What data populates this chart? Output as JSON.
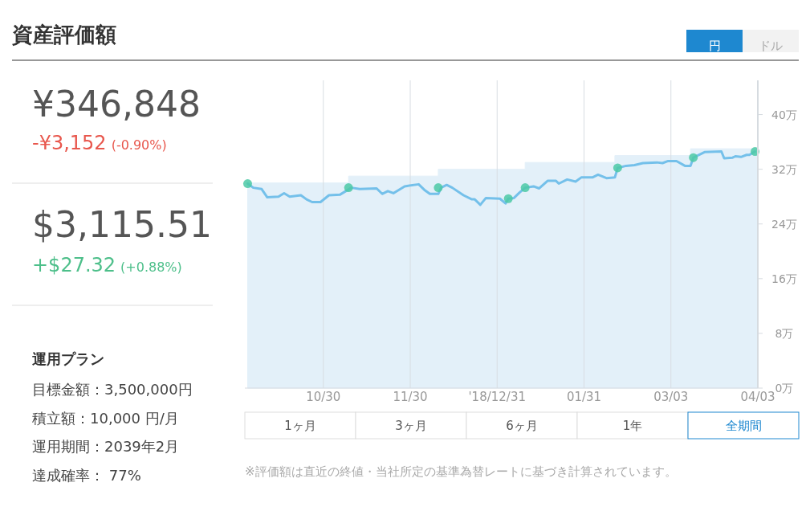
{
  "chart_data": [
    {
      "type": "other",
      "title": "資産評価額",
      "annotations": [
        "¥346,848",
        "-¥3,152",
        "(-0.90%)",
        "$3,115.51",
        "+$27.32",
        "(+0.88%)",
        "運用プラン",
        "目標金額：3,500,000円",
        "積立額：10,000 円/月",
        "運用期間：2039年2月",
        "達成確率： 77%"
      ]
    },
    {
      "type": "line",
      "xlim": [
        "2018-10-02",
        "2019-04-03"
      ],
      "ylim": [
        0,
        45
      ],
      "xticks": [
        {
          "value": "2018-10-30",
          "label": "10/30"
        },
        {
          "value": "2018-11-30",
          "label": "11/30"
        },
        {
          "value": "2018-12-31",
          "label": "'18/12/31"
        },
        {
          "value": "2019-01-31",
          "label": "01/31"
        },
        {
          "value": "2019-03-03",
          "label": "03/03"
        },
        {
          "value": "2019-04-03",
          "label": "04/03"
        }
      ],
      "yticks": [
        {
          "value": 0,
          "label": "0万"
        },
        {
          "value": 8,
          "label": "8万"
        },
        {
          "value": 16,
          "label": "16万"
        },
        {
          "value": 24,
          "label": "24万"
        },
        {
          "value": 32,
          "label": "32万"
        },
        {
          "value": 40,
          "label": "40万"
        }
      ],
      "grid": "x",
      "series": [
        {
          "type": "area",
          "color": "#e3f0f9",
          "x": [
            "2018-10-03",
            "2018-11-08",
            "2018-11-08",
            "2018-12-10",
            "2018-12-10",
            "2019-01-10",
            "2019-01-10",
            "2019-02-11",
            "2019-02-11",
            "2019-03-10",
            "2019-03-10",
            "2019-04-03"
          ],
          "values": [
            30,
            30,
            31,
            31,
            32,
            32,
            33,
            33,
            34,
            34,
            35,
            35
          ]
        },
        {
          "type": "line",
          "color": "#74c0ea",
          "x": [
            "2018-10-03",
            "2018-10-05",
            "2018-10-08",
            "2018-10-10",
            "2018-10-14",
            "2018-10-16",
            "2018-10-18",
            "2018-10-22",
            "2018-10-24",
            "2018-10-26",
            "2018-10-29",
            "2018-11-01",
            "2018-11-05",
            "2018-11-07",
            "2018-11-09",
            "2018-11-12",
            "2018-11-18",
            "2018-11-20",
            "2018-11-22",
            "2018-11-24",
            "2018-11-28",
            "2018-12-03",
            "2018-12-05",
            "2018-12-07",
            "2018-12-10",
            "2018-12-11",
            "2018-12-13",
            "2018-12-15",
            "2018-12-19",
            "2018-12-22",
            "2018-12-23",
            "2018-12-25",
            "2018-12-27",
            "2019-01-01",
            "2019-01-03",
            "2019-01-04",
            "2019-01-06",
            "2019-01-08",
            "2019-01-10",
            "2019-01-13",
            "2019-01-15",
            "2019-01-18",
            "2019-01-21",
            "2019-01-22",
            "2019-01-25",
            "2019-01-28",
            "2019-01-30",
            "2019-02-03",
            "2019-02-05",
            "2019-02-08",
            "2019-02-11",
            "2019-02-12",
            "2019-02-15",
            "2019-02-18",
            "2019-02-21",
            "2019-02-26",
            "2019-02-28",
            "2019-03-02",
            "2019-03-05",
            "2019-03-08",
            "2019-03-10",
            "2019-03-11",
            "2019-03-15",
            "2019-03-21",
            "2019-03-22",
            "2019-03-25",
            "2019-03-26",
            "2019-03-28",
            "2019-03-30",
            "2019-03-31",
            "2019-04-02"
          ],
          "values": [
            29.9,
            29.3,
            29.1,
            27.9,
            28,
            28.5,
            28,
            28.2,
            27.6,
            27.2,
            27.2,
            28.2,
            28.3,
            28.8,
            29.3,
            29.1,
            29.2,
            28.4,
            28.8,
            28.5,
            29.5,
            29.8,
            29,
            28.4,
            28.4,
            29.3,
            29.7,
            29.3,
            28.2,
            27.6,
            27.6,
            26.8,
            27.8,
            27.7,
            27,
            27.7,
            27.8,
            28.6,
            29.3,
            29.5,
            29.2,
            30.3,
            30.3,
            29.9,
            30.5,
            30.2,
            30.8,
            30.8,
            31.2,
            30.7,
            30.8,
            32.2,
            32.5,
            32.6,
            32.9,
            33,
            32.9,
            33.2,
            33.2,
            32.5,
            32.5,
            33.7,
            34.5,
            34.6,
            33.6,
            33.7,
            33.9,
            33.8,
            34.1,
            34.1,
            34.6
          ]
        },
        {
          "type": "scatter",
          "color": "#4cc9a6",
          "marker": "circle",
          "x": [
            "2018-10-03",
            "2018-11-08",
            "2018-12-10",
            "2019-01-04",
            "2019-01-10",
            "2019-02-12",
            "2019-03-11",
            "2019-04-02"
          ],
          "values": [
            29.9,
            29.3,
            29.3,
            27.7,
            29.3,
            32.2,
            33.7,
            34.6
          ]
        }
      ],
      "annotations": [
        "円",
        "ドル",
        "1ヶ月",
        "3ヶ月",
        "6ヶ月",
        "1年",
        "全期間",
        "※評価額は直近の終値・当社所定の基準為替レートに基づき計算されています。"
      ]
    }
  ]
}
